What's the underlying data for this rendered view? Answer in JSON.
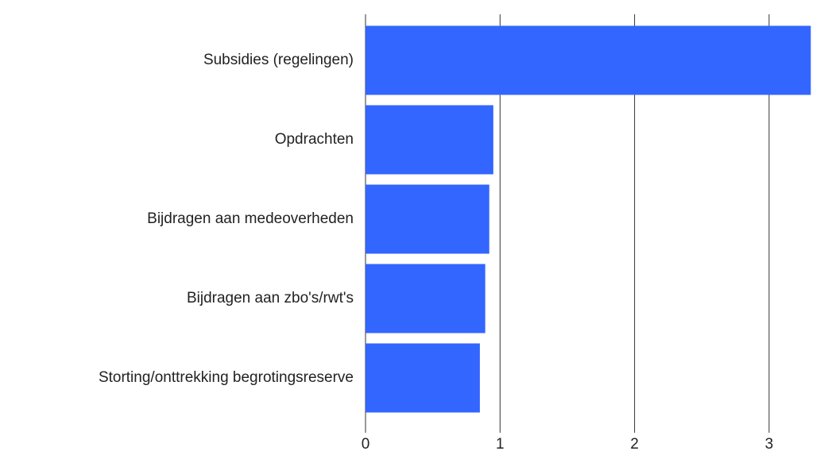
{
  "chart_data": {
    "type": "bar",
    "orientation": "horizontal",
    "categories": [
      "Subsidies (regelingen)",
      "Opdrachten",
      "Bijdragen aan medeoverheden",
      "Bijdragen aan zbo's/rwt's",
      "Storting/onttrekking begrotingsreserve"
    ],
    "values": [
      3.31,
      0.95,
      0.92,
      0.89,
      0.85
    ],
    "color": "#3366ff",
    "xlim": [
      0,
      3.35
    ],
    "xticks": [
      0,
      1,
      2,
      3
    ],
    "grid": true
  }
}
